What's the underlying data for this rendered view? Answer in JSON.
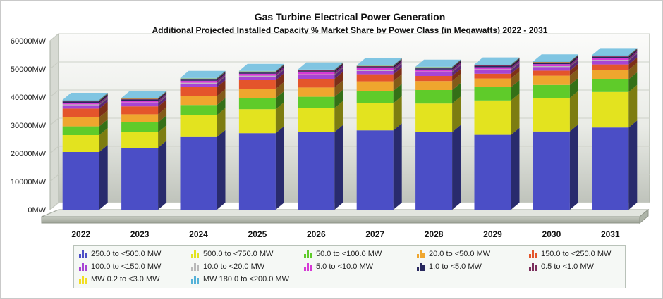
{
  "chart_data": {
    "type": "bar",
    "stacked": true,
    "title": "Gas Turbine Electrical Power Generation",
    "subtitle": "Additional Projected Installed Capacity % Market Share by Power Class (in Megawatts) 2022 - 2031",
    "xlabel": "",
    "ylabel": "",
    "ylim": [
      0,
      60000
    ],
    "y_ticks": [
      "0MW",
      "10000MW",
      "20000MW",
      "30000MW",
      "40000MW",
      "50000MW",
      "60000MW"
    ],
    "y_tick_values": [
      0,
      10000,
      20000,
      30000,
      40000,
      50000,
      60000
    ],
    "categories": [
      "2022",
      "2023",
      "2024",
      "2025",
      "2026",
      "2027",
      "2028",
      "2029",
      "2030",
      "2031"
    ],
    "legend_position": "bottom",
    "series": [
      {
        "name": "250.0 to <500.0 MW",
        "color": "#4b4ec6",
        "values": [
          20500,
          22000,
          25800,
          27200,
          27600,
          28200,
          27600,
          26600,
          27800,
          29200
        ]
      },
      {
        "name": "500.0 to <750.0 MW",
        "color": "#e3e31f",
        "values": [
          6000,
          5500,
          7800,
          8500,
          8500,
          9600,
          10100,
          12200,
          11900,
          12600
        ]
      },
      {
        "name": "50.0 to <100.0 MW",
        "color": "#5fcb2a",
        "values": [
          3100,
          3500,
          3600,
          3900,
          4000,
          4400,
          4800,
          4700,
          4600,
          4500
        ]
      },
      {
        "name": "20.0 to <50.0 MW",
        "color": "#efa62e",
        "values": [
          3200,
          2900,
          3100,
          3300,
          3300,
          3400,
          3200,
          3100,
          3300,
          3400
        ]
      },
      {
        "name": "150.0 to <250.0 MW",
        "color": "#e4552b",
        "values": [
          3100,
          2800,
          3200,
          3100,
          3100,
          2500,
          1800,
          1700,
          1800,
          1900
        ]
      },
      {
        "name": "100.0 to <150.0 MW",
        "color": "#a745d4",
        "values": [
          1200,
          1100,
          1300,
          1300,
          1300,
          1200,
          1300,
          1300,
          1300,
          1300
        ]
      },
      {
        "name": "10.0 to <20.0 MW",
        "color": "#b9b9b9",
        "values": [
          300,
          300,
          300,
          300,
          300,
          300,
          300,
          300,
          300,
          300
        ]
      },
      {
        "name": "5.0 to <10.0 MW",
        "color": "#d63ad6",
        "values": [
          600,
          600,
          700,
          700,
          700,
          700,
          700,
          700,
          700,
          700
        ]
      },
      {
        "name": "1.0 to <5.0 MW",
        "color": "#28285e",
        "values": [
          400,
          400,
          400,
          400,
          400,
          400,
          400,
          400,
          400,
          400
        ]
      },
      {
        "name": "0.5 to <1.0 MW",
        "color": "#7b2e5c",
        "values": [
          300,
          300,
          300,
          300,
          300,
          300,
          300,
          300,
          300,
          300
        ]
      },
      {
        "name": "MW 0.2 to <3.0 MW",
        "color": "#f2de22",
        "values": [
          100,
          100,
          100,
          100,
          100,
          100,
          100,
          100,
          100,
          100
        ]
      },
      {
        "name": "MW 180.0 to <200.0 MW",
        "color": "#55b2d8",
        "values": [
          200,
          200,
          200,
          200,
          200,
          200,
          200,
          200,
          200,
          200
        ]
      }
    ]
  }
}
